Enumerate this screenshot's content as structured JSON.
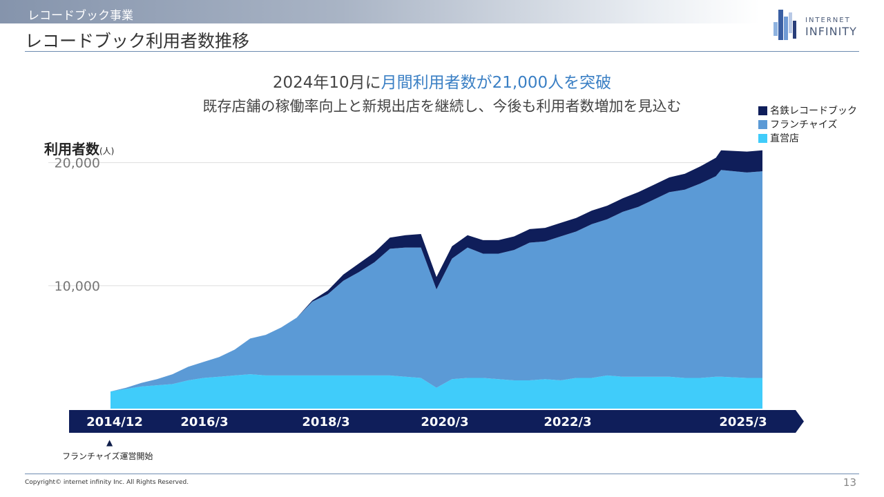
{
  "header": {
    "section": "レコードブック事業",
    "title": "レコードブック利用者数推移",
    "logo_line1": "INTERNET",
    "logo_line2": "INFINITY"
  },
  "headline": {
    "part1": "2024年10月に",
    "part2": "月間利用者数が21,000人を突破",
    "sub": "既存店舗の稼働率向上と新規出店を継続し、今後も利用者数増加を見込む"
  },
  "footer": {
    "franchise_marker": "▲",
    "franchise_note": "フランチャイズ運営開始",
    "copyright": "Copyright© internet infinity Inc. All Rights Reserved.",
    "page": "13"
  },
  "colors": {
    "meitetsu": "#0f1e5a",
    "franchise": "#5b9ad6",
    "direct": "#40ccfa",
    "timeline": "#0f1e5a",
    "gridline": "#dddddd"
  },
  "chart_data": {
    "type": "area",
    "stacked": true,
    "ylabel": "利用者数",
    "yunit": "(人)",
    "yticks": [
      10000,
      20000
    ],
    "ytick_labels": [
      "10,000",
      "20,000"
    ],
    "ylim": [
      0,
      22000
    ],
    "xlim": [
      "2014-12",
      "2025-06"
    ],
    "timeline_labels": [
      {
        "x": "2014-12",
        "label": "2014/12"
      },
      {
        "x": "2016-03",
        "label": "2016/3"
      },
      {
        "x": "2018-03",
        "label": "2018/3"
      },
      {
        "x": "2020-03",
        "label": "2020/3"
      },
      {
        "x": "2022-03",
        "label": "2022/3"
      },
      {
        "x": "2025-03",
        "label": "2025/3"
      }
    ],
    "legend_position": "top-right",
    "grid": "horizontal",
    "x": [
      "2014-12",
      "2015-03",
      "2015-06",
      "2015-09",
      "2015-12",
      "2016-03",
      "2016-06",
      "2016-09",
      "2016-12",
      "2017-03",
      "2017-06",
      "2017-09",
      "2017-12",
      "2018-03",
      "2018-06",
      "2018-09",
      "2018-12",
      "2019-03",
      "2019-06",
      "2019-09",
      "2019-12",
      "2020-03",
      "2020-06",
      "2020-09",
      "2020-12",
      "2021-03",
      "2021-06",
      "2021-09",
      "2021-12",
      "2022-03",
      "2022-06",
      "2022-09",
      "2022-12",
      "2023-03",
      "2023-06",
      "2023-09",
      "2023-12",
      "2024-03",
      "2024-06",
      "2024-09",
      "2024-10",
      "2025-03",
      "2025-06"
    ],
    "series": [
      {
        "name": "直営店",
        "values": [
          1400,
          1600,
          1800,
          1900,
          2000,
          2300,
          2500,
          2600,
          2700,
          2800,
          2700,
          2700,
          2700,
          2700,
          2700,
          2700,
          2700,
          2700,
          2700,
          2600,
          2500,
          1700,
          2400,
          2500,
          2500,
          2400,
          2300,
          2300,
          2400,
          2300,
          2500,
          2500,
          2700,
          2600,
          2600,
          2600,
          2600,
          2500,
          2500,
          2600,
          2600,
          2500,
          2500
        ]
      },
      {
        "name": "フランチャイズ",
        "values": [
          0,
          100,
          300,
          500,
          800,
          1100,
          1300,
          1600,
          2100,
          2900,
          3300,
          3900,
          4700,
          6000,
          6600,
          7700,
          8400,
          9200,
          10300,
          10500,
          10600,
          8000,
          9800,
          10600,
          10100,
          10200,
          10600,
          11200,
          11200,
          11700,
          11900,
          12500,
          12700,
          13400,
          13800,
          14400,
          15000,
          15300,
          15800,
          16300,
          16800,
          16700,
          16800
        ]
      },
      {
        "name": "名鉄レコードブック",
        "values": [
          0,
          0,
          0,
          0,
          0,
          0,
          0,
          0,
          0,
          0,
          0,
          0,
          0,
          100,
          300,
          500,
          700,
          800,
          900,
          1000,
          1100,
          1000,
          1000,
          1000,
          1100,
          1100,
          1100,
          1100,
          1100,
          1100,
          1100,
          1100,
          1100,
          1100,
          1200,
          1200,
          1200,
          1300,
          1400,
          1500,
          1600,
          1700,
          1700
        ]
      }
    ]
  }
}
